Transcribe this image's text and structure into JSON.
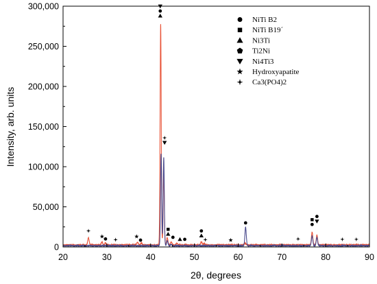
{
  "chart_data": {
    "type": "line",
    "xlabel": "2θ, degrees",
    "ylabel": "Intensity, arb. units",
    "xlim": [
      20,
      90
    ],
    "ylim": [
      0,
      300000
    ],
    "x_ticks": [
      20,
      30,
      40,
      50,
      60,
      70,
      80,
      90
    ],
    "y_ticks": [
      0,
      50000,
      100000,
      150000,
      200000,
      250000,
      300000
    ],
    "y_tick_labels": [
      "0",
      "50,000",
      "100,000",
      "150,000",
      "200,000",
      "250,000",
      "300,000"
    ],
    "grid": false,
    "legend_position": "top-right",
    "legend": [
      {
        "marker": "circle",
        "label": "NiTi B2"
      },
      {
        "marker": "square",
        "label": "NiTi B19´"
      },
      {
        "marker": "triangle-up",
        "label": "Ni3Ti"
      },
      {
        "marker": "pentagon",
        "label": "Ti2Ni"
      },
      {
        "marker": "triangle-down",
        "label": "Ni4Ti3"
      },
      {
        "marker": "star",
        "label": "Hydroxyapatite"
      },
      {
        "marker": "four-point-star",
        "label": "Ca3(PO4)2"
      }
    ],
    "series": [
      {
        "color": "#e8553a",
        "baseline": 2500,
        "peaks": [
          [
            25.8,
            9000
          ],
          [
            28.9,
            3500
          ],
          [
            29.7,
            2500
          ],
          [
            37.0,
            3500
          ],
          [
            37.9,
            2500
          ],
          [
            42.3,
            275000
          ],
          [
            43.0,
            90000
          ],
          [
            43.8,
            9000
          ],
          [
            44.7,
            4000
          ],
          [
            46.0,
            2000
          ],
          [
            51.6,
            4000
          ],
          [
            52.3,
            2000
          ],
          [
            61.6,
            2500
          ],
          [
            76.9,
            16000
          ],
          [
            78.0,
            12000
          ]
        ]
      },
      {
        "color": "#4a4a8c",
        "baseline": 1500,
        "peaks": [
          [
            42.4,
            115000
          ],
          [
            43.0,
            110000
          ],
          [
            43.8,
            6000
          ],
          [
            44.7,
            2000
          ],
          [
            61.7,
            23000
          ],
          [
            76.9,
            12000
          ],
          [
            78.0,
            10000
          ]
        ]
      }
    ],
    "annotations": [
      {
        "x": 25.8,
        "y": 20000,
        "markers": [
          "four-point-star"
        ]
      },
      {
        "x": 28.9,
        "y": 13000,
        "markers": [
          "star"
        ]
      },
      {
        "x": 29.7,
        "y": 10000,
        "markers": [
          "circle"
        ]
      },
      {
        "x": 32.0,
        "y": 9000,
        "markers": [
          "four-point-star"
        ]
      },
      {
        "x": 36.8,
        "y": 13000,
        "markers": [
          "star"
        ]
      },
      {
        "x": 37.7,
        "y": 8500,
        "markers": [
          "circle"
        ]
      },
      {
        "x": 42.2,
        "y": 288000,
        "markers": [
          "triangle-up",
          "circle",
          "triangle-down"
        ]
      },
      {
        "x": 43.2,
        "y": 130000,
        "markers": [
          "triangle-down",
          "four-point-star"
        ]
      },
      {
        "x": 44.0,
        "y": 16000,
        "markers": [
          "triangle-up",
          "square"
        ]
      },
      {
        "x": 45.1,
        "y": 12000,
        "markers": [
          "circle"
        ]
      },
      {
        "x": 46.7,
        "y": 9500,
        "markers": [
          "triangle-up"
        ]
      },
      {
        "x": 47.8,
        "y": 9500,
        "markers": [
          "circle"
        ]
      },
      {
        "x": 51.6,
        "y": 14000,
        "markers": [
          "triangle-up",
          "circle"
        ]
      },
      {
        "x": 52.5,
        "y": 9000,
        "markers": [
          "four-point-star"
        ]
      },
      {
        "x": 58.3,
        "y": 8500,
        "markers": [
          "star"
        ]
      },
      {
        "x": 61.7,
        "y": 30000,
        "markers": [
          "circle"
        ]
      },
      {
        "x": 73.7,
        "y": 10000,
        "markers": [
          "four-point-star"
        ]
      },
      {
        "x": 76.9,
        "y": 28000,
        "markers": [
          "circle",
          "square"
        ]
      },
      {
        "x": 78.0,
        "y": 32000,
        "markers": [
          "triangle-down",
          "circle"
        ]
      },
      {
        "x": 83.8,
        "y": 9500,
        "markers": [
          "four-point-star"
        ]
      },
      {
        "x": 87.0,
        "y": 9500,
        "markers": [
          "four-point-star"
        ]
      }
    ]
  }
}
